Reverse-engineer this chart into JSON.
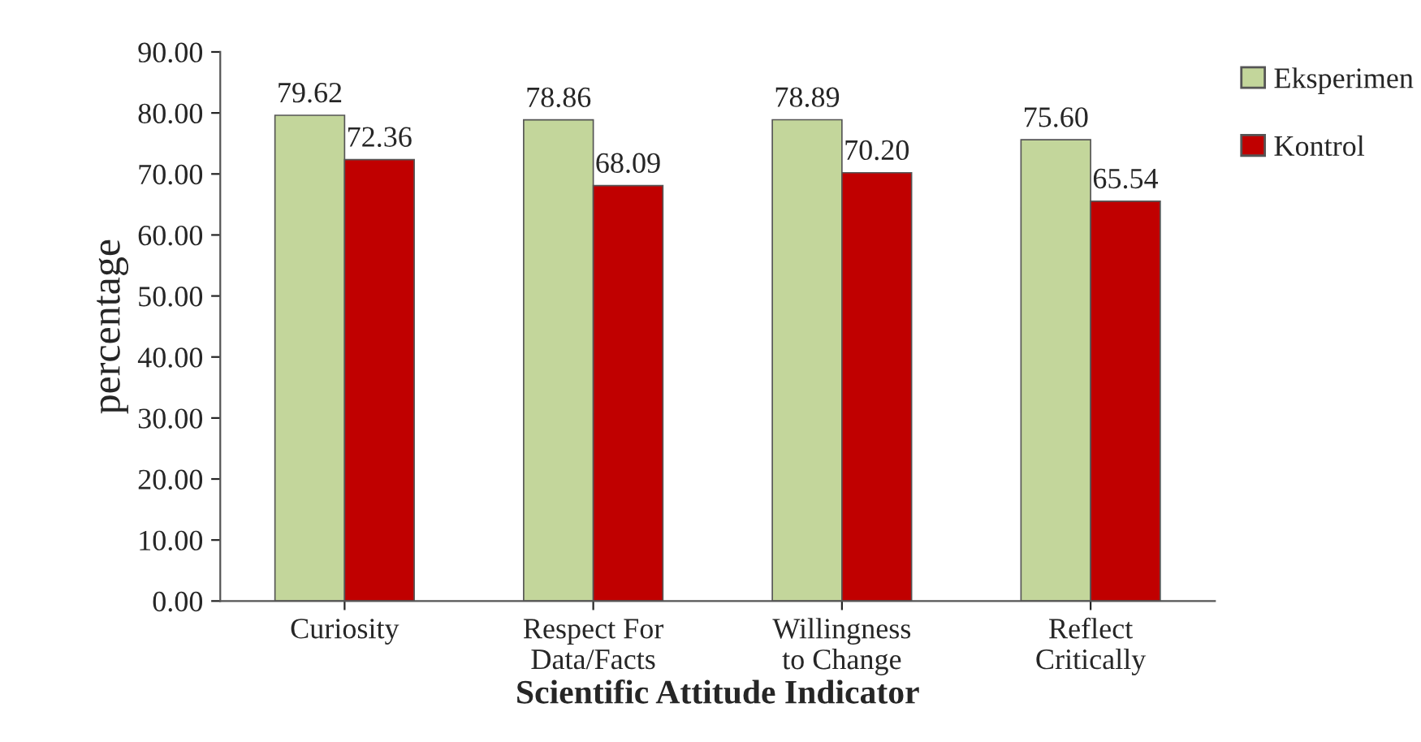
{
  "chart_data": {
    "type": "bar",
    "xlabel": "Scientific Attitude Indicator",
    "ylabel": "percentage",
    "categories": [
      "Curiosity",
      "Respect For\nData/Facts",
      "Willingness\nto Change",
      "Reflect\nCritically"
    ],
    "series": [
      {
        "name": "Eksperimen",
        "color": "#c3d69b",
        "values": [
          79.62,
          78.86,
          78.89,
          75.6
        ],
        "value_labels": [
          "79.62",
          "78.86",
          "78.89",
          "75.60"
        ]
      },
      {
        "name": "Kontrol",
        "color": "#c00000",
        "values": [
          72.36,
          68.09,
          70.2,
          65.54
        ],
        "value_labels": [
          "72.36",
          "68.09",
          "70.20",
          "65.54"
        ]
      }
    ],
    "ylim": [
      0,
      90
    ],
    "yticks": [
      {
        "value": 0,
        "label": "0.00"
      },
      {
        "value": 10,
        "label": "10.00"
      },
      {
        "value": 20,
        "label": "20.00"
      },
      {
        "value": 30,
        "label": "30.00"
      },
      {
        "value": 40,
        "label": "40.00"
      },
      {
        "value": 50,
        "label": "50.00"
      },
      {
        "value": 60,
        "label": "60.00"
      },
      {
        "value": 70,
        "label": "70.00"
      },
      {
        "value": 80,
        "label": "80.00"
      },
      {
        "value": 90,
        "label": "90.00"
      }
    ],
    "legend": "top right",
    "grid": false
  }
}
